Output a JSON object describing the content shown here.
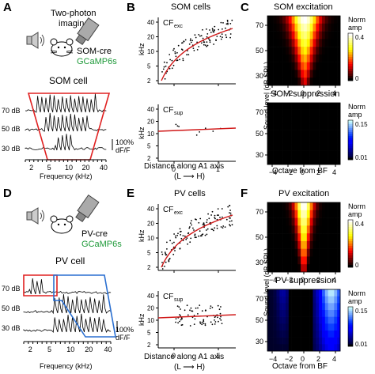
{
  "panels": {
    "A": {
      "letter": "A",
      "imaging": [
        "Two-photon",
        "imaging"
      ],
      "cre": "SOM-cre",
      "indicator": "GCaMP6s",
      "cell_title": "SOM cell",
      "levels": [
        "70 dB",
        "50 dB",
        "30 dB"
      ],
      "scale": [
        "100%",
        "dF/F"
      ],
      "freq_ticks": [
        "2",
        "5",
        "10",
        "20",
        "40"
      ],
      "xlabel": "Frequency (kHz)"
    },
    "B": {
      "letter": "B",
      "title": "SOM cells",
      "top_label": "CF",
      "top_sub": "exc",
      "bot_label": "CF",
      "bot_sub": "sup",
      "yticks_top": [
        "40",
        "20",
        "10",
        "5",
        "2"
      ],
      "yticks_bot": [
        "40",
        "20",
        "10",
        "5",
        "2"
      ],
      "ylabel": "kHz",
      "xticks": [
        "0",
        "1"
      ],
      "xlabel": "Distance along A1 axis",
      "xlabel2": "(L ⟶ H)"
    },
    "C": {
      "letter": "C",
      "title_top": "SOM excitation",
      "title_bot": "SOM suppression",
      "cb_top": [
        "Norm",
        "amp",
        "0.4",
        "0"
      ],
      "cb_bot": [
        "Norm",
        "amp",
        "0.15",
        "0.01"
      ],
      "yticks": [
        "70",
        "50",
        "30"
      ],
      "ylabel": "Sound level (dB SPL)",
      "xticks": [
        "−4",
        "−2",
        "0",
        "2",
        "4"
      ],
      "xlabel": "Octave from BF"
    },
    "D": {
      "letter": "D",
      "cre": "PV-cre",
      "indicator": "GCaMP6s",
      "cell_title": "PV cell",
      "levels": [
        "70 dB",
        "50 dB",
        "30 dB"
      ],
      "scale": [
        "100%",
        "dF/F"
      ],
      "freq_ticks": [
        "2",
        "5",
        "10",
        "20",
        "40"
      ],
      "xlabel": "Frequency (kHz)"
    },
    "E": {
      "letter": "E",
      "title": "PV cells",
      "top_label": "CF",
      "top_sub": "exc",
      "bot_label": "CF",
      "bot_sub": "sup",
      "yticks_top": [
        "40",
        "20",
        "10",
        "5",
        "2"
      ],
      "yticks_bot": [
        "40",
        "20",
        "10",
        "5",
        "2"
      ],
      "ylabel": "kHz",
      "xticks": [
        "0",
        "1"
      ],
      "xlabel": "Distance along A1 axis",
      "xlabel2": "(L ⟶ H)"
    },
    "F": {
      "letter": "F",
      "title_top": "PV excitation",
      "title_bot": "PV suppression",
      "cb_top": [
        "Norm",
        "amp",
        "0.4",
        "0"
      ],
      "cb_bot": [
        "Norm",
        "amp",
        "0.15",
        "0.01"
      ],
      "yticks": [
        "70",
        "50",
        "30"
      ],
      "ylabel": "Sound level (dB SPL)",
      "xticks": [
        "−4",
        "−2",
        "0",
        "2",
        "4"
      ],
      "xlabel": "Octave from BF"
    }
  },
  "colors": {
    "fit_line": "#d01818",
    "frame_red": "#e02020",
    "frame_blue": "#2a6fd0",
    "heat_bg": "#1a0000",
    "suppression_bg": "#000000"
  }
}
